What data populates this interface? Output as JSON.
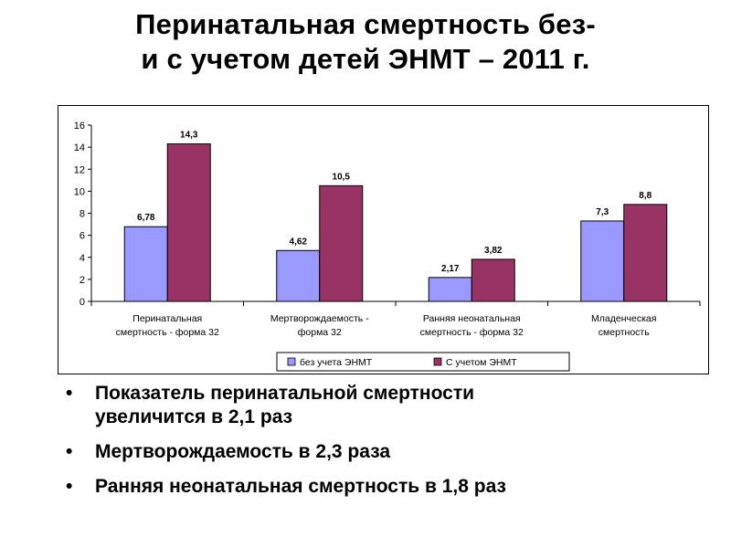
{
  "slide": {
    "title_lines": [
      "Перинатальная смертность без-",
      "и с учетом детей  ЭНМТ – 2011 г."
    ]
  },
  "chart_data": {
    "type": "bar",
    "categories": [
      [
        "Перинатальная",
        "смертность - форма 32"
      ],
      [
        "Мертворождаемость -",
        "форма 32"
      ],
      [
        "Ранняя неонатальная",
        "смертность - форма 32"
      ],
      [
        "Младенческая",
        "смертность"
      ]
    ],
    "series": [
      {
        "name": "без учета ЭНМТ",
        "values": [
          6.78,
          4.62,
          2.17,
          7.3
        ],
        "labels": [
          "6,78",
          "4,62",
          "2,17",
          "7,3"
        ],
        "color": "#9999ff"
      },
      {
        "name": "С учетом ЭНМТ",
        "values": [
          14.3,
          10.5,
          3.82,
          8.8
        ],
        "labels": [
          "14,3",
          "10,5",
          "3,82",
          "8,8"
        ],
        "color": "#993366"
      }
    ],
    "ylim": [
      0,
      16
    ],
    "yticks": [
      0,
      2,
      4,
      6,
      8,
      10,
      12,
      14,
      16
    ],
    "grid": false,
    "legend_position": "bottom"
  },
  "bullets": [
    [
      "Показатель перинатальной смертности",
      "увеличится в 2,1 раз"
    ],
    [
      "Мертворождаемость  в 2,3 раза"
    ],
    [
      "Ранняя неонатальная смертность в 1,8 раз"
    ]
  ]
}
